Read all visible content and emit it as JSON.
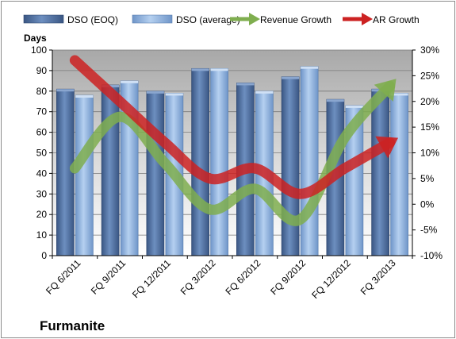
{
  "chart_data": {
    "type": "bar",
    "company": "Furmanite",
    "ylabel": "Days",
    "ylim": [
      0,
      100
    ],
    "y_ticks": [
      "0",
      "10",
      "20",
      "30",
      "40",
      "50",
      "60",
      "70",
      "80",
      "90",
      "100"
    ],
    "y2lim": [
      -10,
      30
    ],
    "y2_ticks": [
      "-10%",
      "-5%",
      "0%",
      "5%",
      "10%",
      "15%",
      "20%",
      "25%",
      "30%"
    ],
    "categories": [
      "FQ 6/2011",
      "FQ 9/2011",
      "FQ 12/2011",
      "FQ 3/2012",
      "FQ 6/2012",
      "FQ 9/2012",
      "FQ 12/2012",
      "FQ 3/2013"
    ],
    "series": [
      {
        "name": "DSO (EOQ)",
        "kind": "bar",
        "axis": "left",
        "color": "#4a6a9a",
        "values": [
          81,
          83,
          80,
          91,
          84,
          87,
          76,
          81
        ]
      },
      {
        "name": "DSO (average)",
        "kind": "bar",
        "axis": "left",
        "color": "#8db3e0",
        "values": [
          78,
          85,
          79,
          91,
          80,
          92,
          73,
          79
        ]
      },
      {
        "name": "Revenue Growth",
        "kind": "line",
        "axis": "right",
        "color": "#7fae4f",
        "values": [
          7,
          17,
          8,
          -1,
          3,
          -3,
          13,
          23
        ]
      },
      {
        "name": "AR Growth",
        "kind": "line",
        "axis": "right",
        "color": "#cc2222",
        "values": [
          28,
          20,
          12,
          5,
          7,
          2,
          7,
          12
        ]
      }
    ],
    "grid": true,
    "legend_position": "top"
  }
}
